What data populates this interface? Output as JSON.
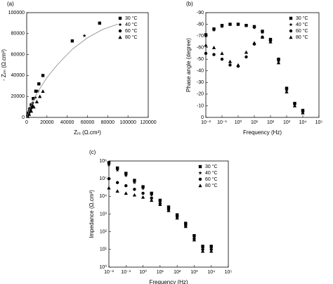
{
  "chart_data": [
    {
      "type": "scatter",
      "title": "(a)",
      "xlabel": "Zᵣₑ (Ω.cm²)",
      "ylabel": "- Zᵢₘ (Ω.cm²)",
      "xlim": [
        0,
        120000
      ],
      "ylim": [
        0,
        100000
      ],
      "xticks": [
        0,
        20000,
        40000,
        60000,
        80000,
        100000,
        120000
      ],
      "yticks": [
        0,
        20000,
        40000,
        60000,
        80000,
        100000
      ],
      "legend": "upper right",
      "series": [
        {
          "name": "30 °C",
          "marker": "square",
          "color": "#000000",
          "x": [
            1500,
            3000,
            4500,
            6500,
            9000,
            12000,
            16000,
            45000,
            72000
          ],
          "values": [
            4000,
            8000,
            12000,
            18000,
            25000,
            32000,
            40000,
            73000,
            90000
          ]
        },
        {
          "name": "40 °C",
          "marker": "star",
          "color": "#000000",
          "x": [
            1200,
            2500,
            4000,
            6000,
            8500,
            11000,
            57000
          ],
          "values": [
            3000,
            6000,
            9500,
            14000,
            19000,
            25000,
            78000
          ]
        },
        {
          "name": "60 °C",
          "marker": "circle",
          "color": "#000000",
          "x": [
            800,
            1500,
            2500,
            3500,
            4500,
            5500
          ],
          "values": [
            1500,
            3000,
            5000,
            7000,
            9000,
            11000
          ]
        },
        {
          "name": "80 °C",
          "marker": "triangle",
          "color": "#000000",
          "x": [
            1000,
            2500,
            4500,
            7000,
            10000,
            13000,
            16000
          ],
          "values": [
            1000,
            3000,
            6000,
            10000,
            15000,
            20000,
            25000
          ]
        },
        {
          "marker": "line",
          "color": "#888888",
          "x": [
            0,
            5000,
            10000,
            20000,
            30000,
            45000,
            60000,
            75000,
            90000
          ],
          "values": [
            0,
            13000,
            23000,
            38000,
            50000,
            65000,
            76000,
            84000,
            89000
          ]
        }
      ]
    },
    {
      "type": "scatter",
      "title": "(b)",
      "xlabel": "Frequency (Hz)",
      "ylabel": "Phase angle (degree)",
      "xlog": true,
      "xlim": [
        0.01,
        100000
      ],
      "ylim": [
        0,
        -90
      ],
      "xticks": [
        {
          "value": 0.01,
          "label": "10⁻²"
        },
        {
          "value": 0.1,
          "label": "10⁻¹"
        },
        {
          "value": 1,
          "label": "10⁰"
        },
        {
          "value": 10,
          "label": "10¹"
        },
        {
          "value": 100,
          "label": "10²"
        },
        {
          "value": 1000,
          "label": "10³"
        },
        {
          "value": 10000,
          "label": "10⁴"
        },
        {
          "value": 100000,
          "label": "10⁵"
        }
      ],
      "yticks": [
        0,
        -10,
        -20,
        -30,
        -40,
        -50,
        -60,
        -70,
        -80,
        -90
      ],
      "legend": "upper right",
      "x": [
        0.01,
        0.0316,
        0.1,
        0.316,
        1,
        3.16,
        10,
        31.6,
        100,
        316,
        1000,
        3162,
        10000
      ],
      "series": [
        {
          "name": "30 °C",
          "marker": "square",
          "color": "#000000",
          "values": [
            -71,
            -76,
            -79,
            -80,
            -80,
            -79,
            -78,
            -74,
            -67,
            -50,
            -25,
            -12,
            -6
          ]
        },
        {
          "name": "40 °C",
          "marker": "star",
          "color": "#000000",
          "values": [
            -70,
            -75,
            -78,
            -80,
            -80,
            -79,
            -77,
            -73,
            -66,
            -48,
            -23,
            -11,
            -5
          ]
        },
        {
          "name": "60 °C",
          "marker": "circle",
          "color": "#000000",
          "values": [
            -55,
            -54,
            -50,
            -45,
            -44,
            -52,
            -63,
            -69,
            -66,
            -50,
            -25,
            -12,
            -5
          ]
        },
        {
          "name": "80 °C",
          "marker": "triangle",
          "color": "#000000",
          "values": [
            -62,
            -60,
            -55,
            -48,
            -45,
            -56,
            -64,
            -69,
            -65,
            -47,
            -22,
            -10,
            -4
          ]
        }
      ]
    },
    {
      "type": "scatter",
      "title": "(c)",
      "xlabel": "Frequency (Hz)",
      "ylabel": "Impedance (Ω.cm²)",
      "xlog": true,
      "ylog": true,
      "xlim": [
        0.01,
        100000
      ],
      "ylim": [
        1,
        1000000
      ],
      "xticks": [
        {
          "value": 0.01,
          "label": "10⁻²"
        },
        {
          "value": 0.1,
          "label": "10⁻¹"
        },
        {
          "value": 1,
          "label": "10⁰"
        },
        {
          "value": 10,
          "label": "10¹"
        },
        {
          "value": 100,
          "label": "10²"
        },
        {
          "value": 1000,
          "label": "10³"
        },
        {
          "value": 10000,
          "label": "10⁴"
        },
        {
          "value": 100000,
          "label": "10⁵"
        }
      ],
      "yticks": [
        {
          "value": 1,
          "label": "10⁰"
        },
        {
          "value": 10,
          "label": "10¹"
        },
        {
          "value": 100,
          "label": "10²"
        },
        {
          "value": 1000,
          "label": "10³"
        },
        {
          "value": 10000,
          "label": "10⁴"
        },
        {
          "value": 100000,
          "label": "10⁵"
        },
        {
          "value": 1000000,
          "label": "10⁶"
        }
      ],
      "legend": "upper right",
      "x": [
        0.01,
        0.0316,
        0.1,
        0.316,
        1,
        3.16,
        10,
        31.6,
        100,
        316,
        1000,
        3162,
        10000
      ],
      "series": [
        {
          "name": "30 °C",
          "marker": "square",
          "color": "#000000",
          "values": [
            800000,
            400000,
            200000,
            80000,
            35000,
            15000,
            6000,
            2500,
            900,
            300,
            60,
            15,
            15
          ]
        },
        {
          "name": "40 °C",
          "marker": "star",
          "color": "#000000",
          "values": [
            600000,
            300000,
            150000,
            60000,
            28000,
            12000,
            5000,
            2000,
            800,
            250,
            50,
            12,
            12
          ]
        },
        {
          "name": "60 °C",
          "marker": "circle",
          "color": "#000000",
          "values": [
            100000,
            60000,
            40000,
            25000,
            15000,
            8000,
            4000,
            1800,
            700,
            220,
            40,
            10,
            10
          ]
        },
        {
          "name": "80 °C",
          "marker": "triangle",
          "color": "#000000",
          "values": [
            30000,
            20000,
            15000,
            12000,
            9000,
            6000,
            3500,
            1600,
            600,
            200,
            35,
            8,
            8
          ]
        }
      ]
    }
  ]
}
